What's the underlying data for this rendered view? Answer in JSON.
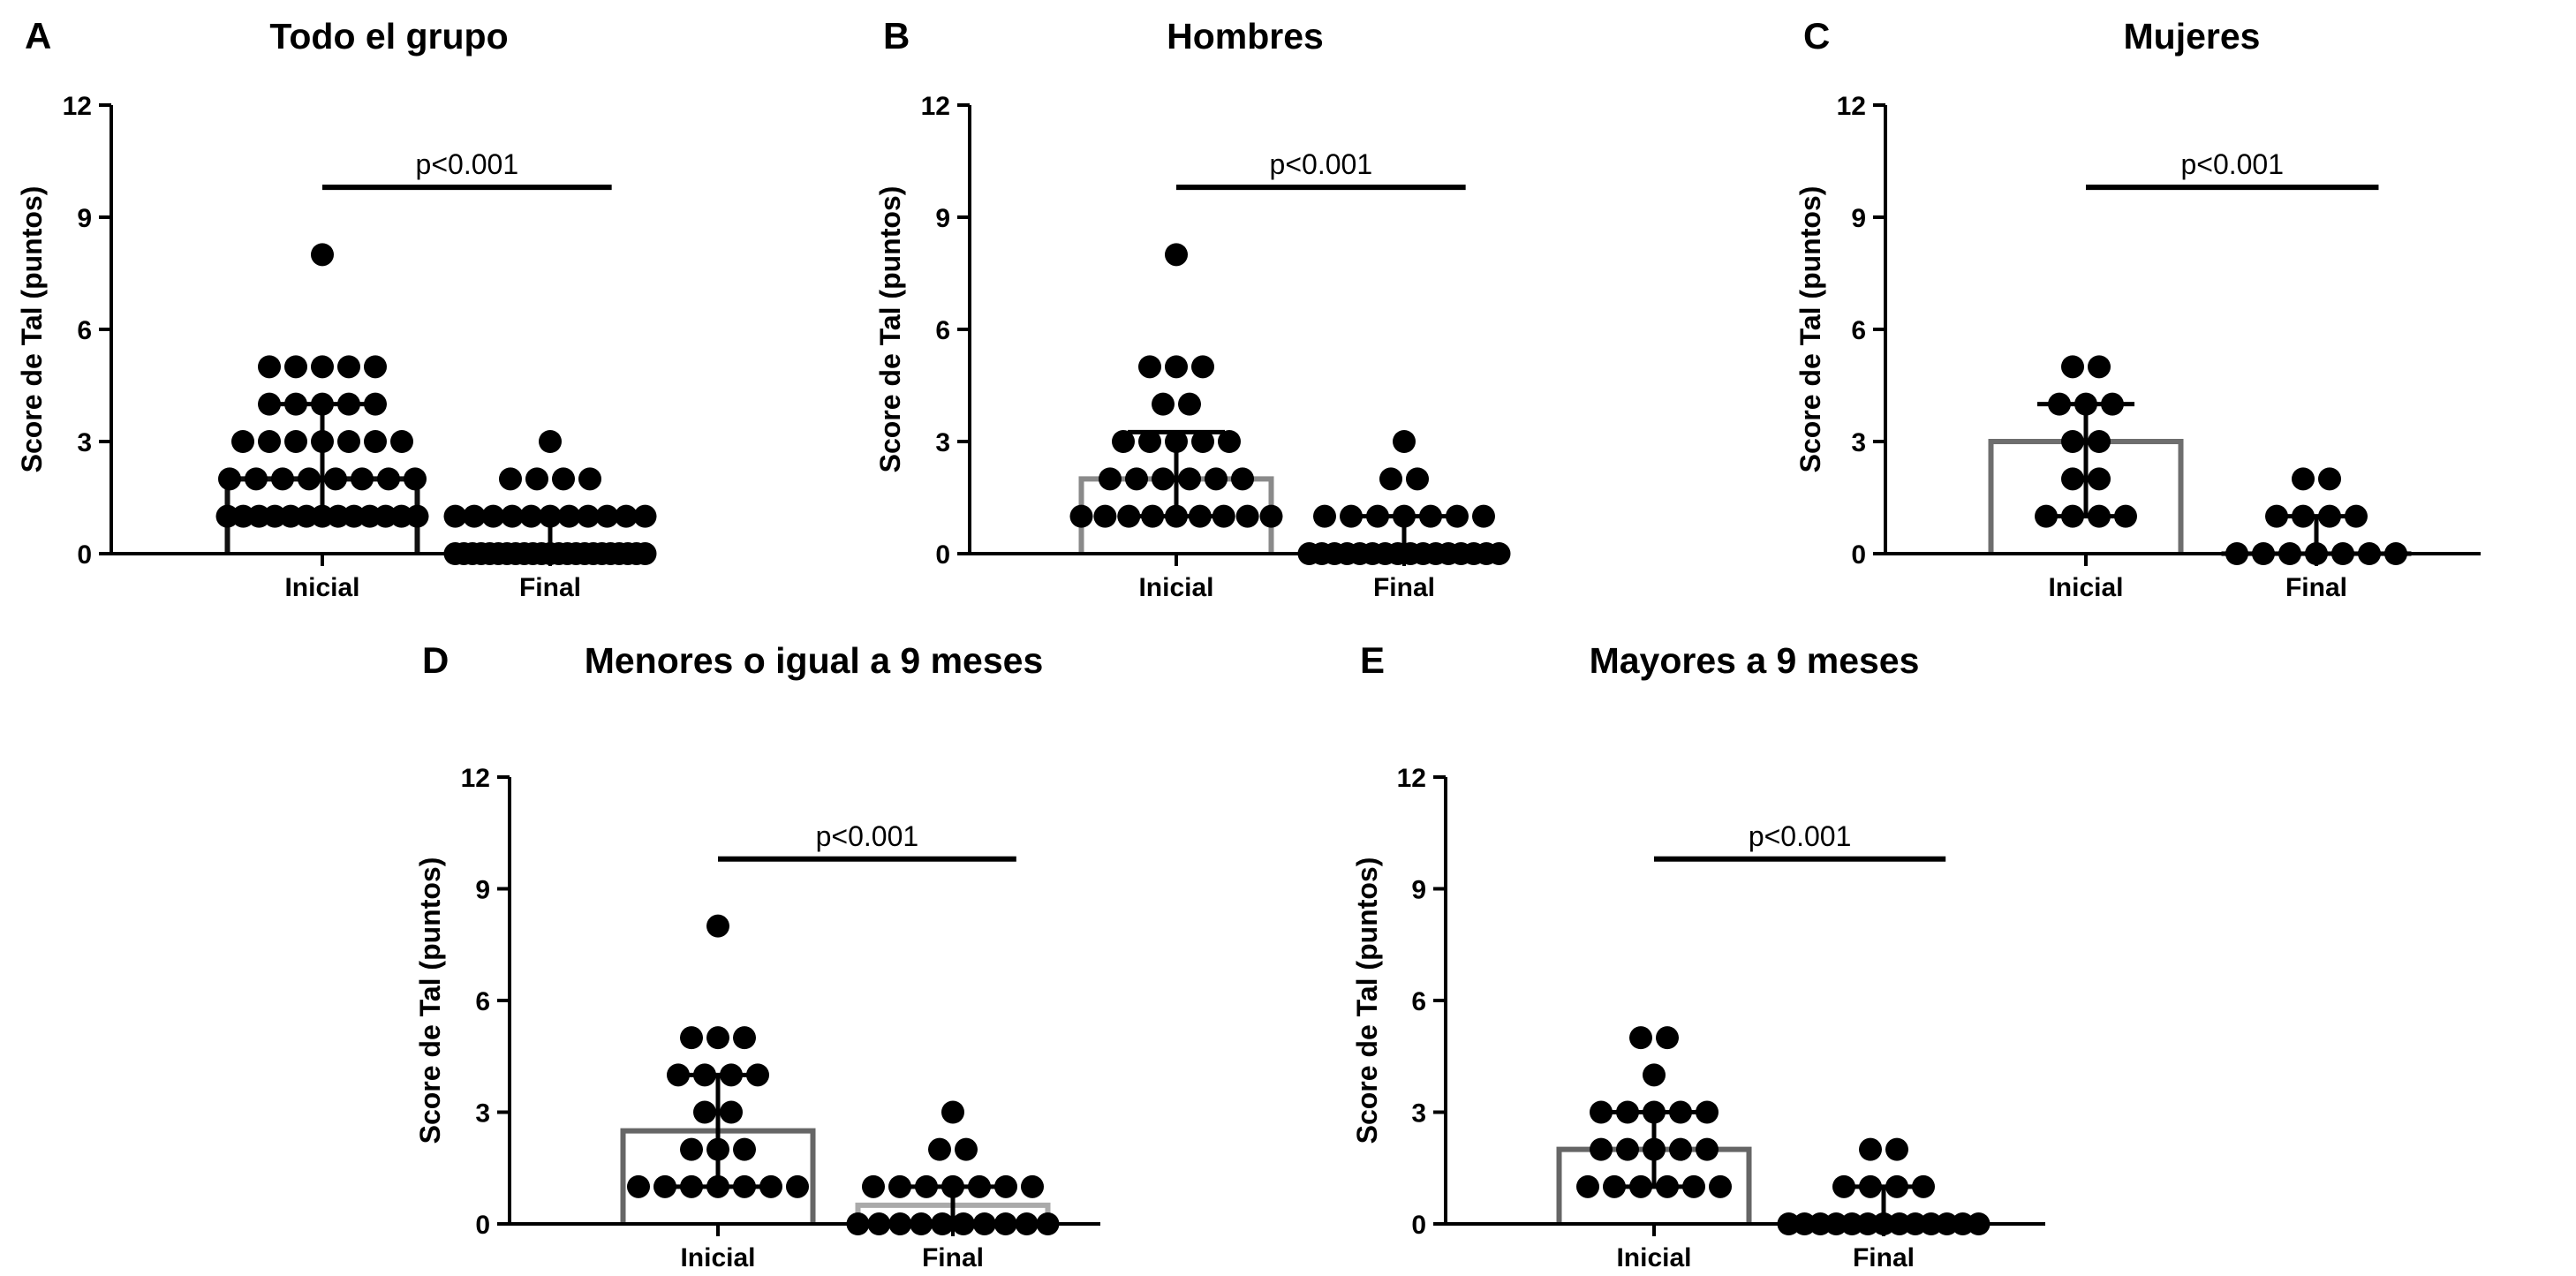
{
  "chart_data": [
    {
      "panel": "A",
      "title": "Todo el grupo",
      "type": "bar",
      "ylabel": "Score de Tal (puntos)",
      "xlabel": "",
      "categories": [
        "Inicial",
        "Final"
      ],
      "ylim": [
        0,
        12
      ],
      "yticks": [
        "0",
        "3",
        "6",
        "9",
        "12"
      ],
      "bars": [
        {
          "category": "Inicial",
          "value": 2,
          "error": [
            1,
            4
          ],
          "color": "#111111"
        },
        {
          "category": "Final",
          "value": 0,
          "error": [
            0,
            1
          ],
          "color": "#111111"
        }
      ],
      "points": {
        "Inicial": [
          {
            "y": 8,
            "n": 1
          },
          {
            "y": 5,
            "n": 5
          },
          {
            "y": 4,
            "n": 5
          },
          {
            "y": 3,
            "n": 7
          },
          {
            "y": 2,
            "n": 8
          },
          {
            "y": 1,
            "n": 13
          }
        ],
        "Final": [
          {
            "y": 3,
            "n": 1
          },
          {
            "y": 2,
            "n": 4
          },
          {
            "y": 1,
            "n": 11
          },
          {
            "y": 0,
            "n": 23
          }
        ]
      },
      "annotation": "p<0.001"
    },
    {
      "panel": "B",
      "title": "Hombres",
      "type": "bar",
      "ylabel": "Score de Tal (puntos)",
      "xlabel": "",
      "categories": [
        "Inicial",
        "Final"
      ],
      "ylim": [
        0,
        12
      ],
      "yticks": [
        "0",
        "3",
        "6",
        "9",
        "12"
      ],
      "bars": [
        {
          "category": "Inicial",
          "value": 2,
          "error": [
            1,
            3.25
          ],
          "color": "#8a8a8a"
        },
        {
          "category": "Final",
          "value": 0,
          "error": [
            0,
            1
          ],
          "color": "#8a8a8a"
        }
      ],
      "points": {
        "Inicial": [
          {
            "y": 8,
            "n": 1
          },
          {
            "y": 5,
            "n": 3
          },
          {
            "y": 4,
            "n": 2
          },
          {
            "y": 3,
            "n": 5
          },
          {
            "y": 2,
            "n": 6
          },
          {
            "y": 1,
            "n": 9
          }
        ],
        "Final": [
          {
            "y": 3,
            "n": 1
          },
          {
            "y": 2,
            "n": 2
          },
          {
            "y": 1,
            "n": 7
          },
          {
            "y": 0,
            "n": 16
          }
        ]
      },
      "annotation": "p<0.001"
    },
    {
      "panel": "C",
      "title": "Mujeres",
      "type": "bar",
      "ylabel": "Score de Tal (puntos)",
      "xlabel": "",
      "categories": [
        "Inicial",
        "Final"
      ],
      "ylim": [
        0,
        12
      ],
      "yticks": [
        "0",
        "3",
        "6",
        "9",
        "12"
      ],
      "bars": [
        {
          "category": "Inicial",
          "value": 3,
          "error": [
            1,
            4
          ],
          "color": "#6e6e6e"
        },
        {
          "category": "Final",
          "value": 0,
          "error": [
            0,
            1
          ],
          "color": "#6e6e6e"
        }
      ],
      "points": {
        "Inicial": [
          {
            "y": 5,
            "n": 2
          },
          {
            "y": 4,
            "n": 3
          },
          {
            "y": 3,
            "n": 2
          },
          {
            "y": 2,
            "n": 2
          },
          {
            "y": 1,
            "n": 4
          }
        ],
        "Final": [
          {
            "y": 2,
            "n": 2
          },
          {
            "y": 1,
            "n": 4
          },
          {
            "y": 0,
            "n": 7
          }
        ]
      },
      "annotation": "p<0.001"
    },
    {
      "panel": "D",
      "title": "Menores o igual a 9 meses",
      "type": "bar",
      "ylabel": "Score de Tal (puntos)",
      "xlabel": "",
      "categories": [
        "Inicial",
        "Final"
      ],
      "ylim": [
        0,
        12
      ],
      "yticks": [
        "0",
        "3",
        "6",
        "9",
        "12"
      ],
      "bars": [
        {
          "category": "Inicial",
          "value": 2.5,
          "error": [
            1,
            4
          ],
          "color": "#666666"
        },
        {
          "category": "Final",
          "value": 0.5,
          "error": [
            0,
            1
          ],
          "color": "#aaaaaa"
        }
      ],
      "points": {
        "Inicial": [
          {
            "y": 8,
            "n": 1
          },
          {
            "y": 5,
            "n": 3
          },
          {
            "y": 4,
            "n": 4
          },
          {
            "y": 3,
            "n": 2
          },
          {
            "y": 2,
            "n": 3
          },
          {
            "y": 1,
            "n": 7
          }
        ],
        "Final": [
          {
            "y": 3,
            "n": 1
          },
          {
            "y": 2,
            "n": 2
          },
          {
            "y": 1,
            "n": 7
          },
          {
            "y": 0,
            "n": 10
          }
        ]
      },
      "annotation": "p<0.001"
    },
    {
      "panel": "E",
      "title": "Mayores a 9 meses",
      "type": "bar",
      "ylabel": "Score de Tal (puntos)",
      "xlabel": "",
      "categories": [
        "Inicial",
        "Final"
      ],
      "ylim": [
        0,
        12
      ],
      "yticks": [
        "0",
        "3",
        "6",
        "9",
        "12"
      ],
      "bars": [
        {
          "category": "Inicial",
          "value": 2,
          "error": [
            1,
            3
          ],
          "color": "#666666"
        },
        {
          "category": "Final",
          "value": 0,
          "error": [
            0,
            1
          ],
          "color": "#666666"
        }
      ],
      "points": {
        "Inicial": [
          {
            "y": 5,
            "n": 2
          },
          {
            "y": 4,
            "n": 1
          },
          {
            "y": 3,
            "n": 5
          },
          {
            "y": 2,
            "n": 5
          },
          {
            "y": 1,
            "n": 6
          }
        ],
        "Final": [
          {
            "y": 2,
            "n": 2
          },
          {
            "y": 1,
            "n": 4
          },
          {
            "y": 0,
            "n": 13
          }
        ]
      },
      "annotation": "p<0.001"
    }
  ]
}
